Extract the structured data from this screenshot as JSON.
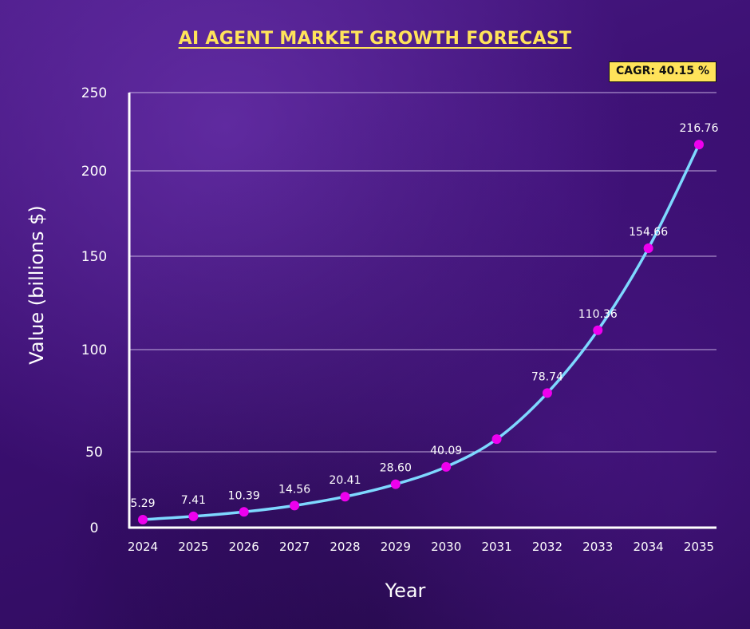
{
  "title": "AI AGENT MARKET GROWTH FORECAST",
  "badge": {
    "text": "CAGR: 40.15 %"
  },
  "colors": {
    "background": "#3a0f6e",
    "title": "#ffe35a",
    "badge_fill": "#ffe35a",
    "line": "#7ed8ff",
    "marker": "#ee00ee",
    "gridline": "#d9c8f0",
    "axis": "#ffffff",
    "text": "#ffffff"
  },
  "chart_data": {
    "type": "line",
    "title": "AI AGENT MARKET GROWTH FORECAST",
    "xlabel": "Year",
    "ylabel": "Value (billions $)",
    "x": [
      "2024",
      "2025",
      "2026",
      "2027",
      "2028",
      "2029",
      "2030",
      "2031",
      "2032",
      "2033",
      "2034",
      "2035"
    ],
    "y_ticks": [
      "0",
      "50",
      "100",
      "150",
      "200",
      "250"
    ],
    "series": [
      {
        "values": [
          5.29,
          7.41,
          10.39,
          14.56,
          20.41,
          28.6,
          40.09,
          56.2,
          78.74,
          110.36,
          154.66,
          216.76
        ],
        "labels": [
          "5.29",
          "7.41",
          "10.39",
          "14.56",
          "20.41",
          "28.60",
          "40.09",
          "",
          "78.74",
          "110.36",
          "154.66",
          "216.76"
        ]
      }
    ],
    "grid": true,
    "smooth": true,
    "annotation": "CAGR: 40.15 %"
  }
}
